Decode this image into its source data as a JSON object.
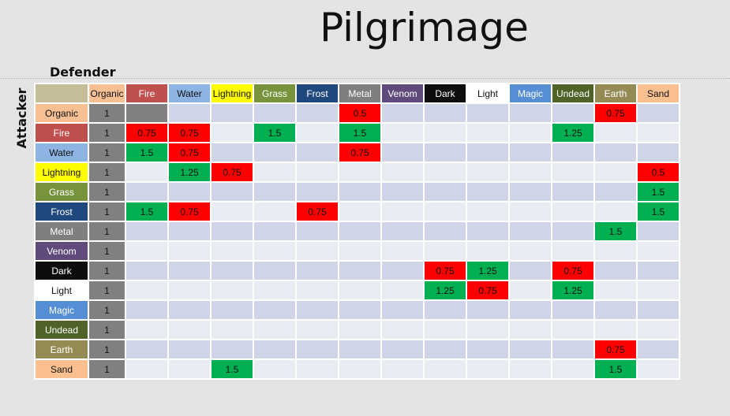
{
  "title": "Pilgrimage",
  "defender_label": "Defender",
  "attacker_label": "Attacker",
  "columns": [
    {
      "label": "Organic",
      "bg": "#f8bf93",
      "fg": "#111111"
    },
    {
      "label": "Fire",
      "bg": "#c0504d",
      "fg": "#ffffff"
    },
    {
      "label": "Water",
      "bg": "#8eb4e3",
      "fg": "#111111"
    },
    {
      "label": "Lightning",
      "bg": "#ffff00",
      "fg": "#111111"
    },
    {
      "label": "Grass",
      "bg": "#77933c",
      "fg": "#ffffff"
    },
    {
      "label": "Frost",
      "bg": "#1f497d",
      "fg": "#ffffff"
    },
    {
      "label": "Metal",
      "bg": "#7f7f7f",
      "fg": "#ffffff"
    },
    {
      "label": "Venom",
      "bg": "#604a7b",
      "fg": "#ffffff"
    },
    {
      "label": "Dark",
      "bg": "#0d0d0d",
      "fg": "#ffffff"
    },
    {
      "label": "Light",
      "bg": "#ffffff",
      "fg": "#111111"
    },
    {
      "label": "Magic",
      "bg": "#558ed5",
      "fg": "#ffffff"
    },
    {
      "label": "Undead",
      "bg": "#4f6228",
      "fg": "#ffffff"
    },
    {
      "label": "Earth",
      "bg": "#948a54",
      "fg": "#ffffff"
    },
    {
      "label": "Sand",
      "bg": "#fac090",
      "fg": "#111111"
    }
  ],
  "rows": [
    {
      "label": "Organic",
      "bg": "#f8bf93",
      "fg": "#111111",
      "cells": [
        "1",
        {
          "c": "gray"
        },
        "",
        "",
        "",
        "",
        "0.5",
        "",
        "",
        "",
        "",
        "",
        "0.75",
        ""
      ]
    },
    {
      "label": "Fire",
      "bg": "#c0504d",
      "fg": "#ffffff",
      "cells": [
        "1",
        "0.75",
        "0.75",
        "",
        "1.5",
        "",
        "1.5",
        "",
        "",
        "",
        "",
        "1.25",
        "",
        ""
      ]
    },
    {
      "label": "Water",
      "bg": "#8eb4e3",
      "fg": "#111111",
      "cells": [
        "1",
        "1.5",
        "0.75",
        "",
        "",
        "",
        "0.75",
        "",
        "",
        "",
        "",
        "",
        "",
        ""
      ]
    },
    {
      "label": "Lightning",
      "bg": "#ffff00",
      "fg": "#111111",
      "cells": [
        "1",
        "",
        "1.25",
        "0.75",
        "",
        "",
        "",
        "",
        "",
        "",
        "",
        "",
        "",
        "0.5"
      ]
    },
    {
      "label": "Grass",
      "bg": "#77933c",
      "fg": "#ffffff",
      "cells": [
        "1",
        "",
        "",
        "",
        "",
        "",
        "",
        "",
        "",
        "",
        "",
        "",
        "",
        "1.5"
      ]
    },
    {
      "label": "Frost",
      "bg": "#1f497d",
      "fg": "#ffffff",
      "cells": [
        "1",
        "1.5",
        "0.75",
        "",
        "",
        "0.75",
        "",
        "",
        "",
        "",
        "",
        "",
        "",
        "1.5"
      ]
    },
    {
      "label": "Metal",
      "bg": "#7f7f7f",
      "fg": "#ffffff",
      "cells": [
        "1",
        "",
        "",
        "",
        "",
        "",
        "",
        "",
        "",
        "",
        "",
        "",
        "1.5",
        ""
      ]
    },
    {
      "label": "Venom",
      "bg": "#604a7b",
      "fg": "#ffffff",
      "cells": [
        "1",
        "",
        "",
        "",
        "",
        "",
        "",
        "",
        "",
        "",
        "",
        "",
        "",
        ""
      ]
    },
    {
      "label": "Dark",
      "bg": "#0d0d0d",
      "fg": "#ffffff",
      "cells": [
        "1",
        "",
        "",
        "",
        "",
        "",
        "",
        "",
        "0.75",
        "1.25",
        "",
        "0.75",
        "",
        ""
      ]
    },
    {
      "label": "Light",
      "bg": "#ffffff",
      "fg": "#111111",
      "cells": [
        "1",
        "",
        "",
        "",
        "",
        "",
        "",
        "",
        "1.25",
        "0.75",
        "",
        "1.25",
        "",
        ""
      ]
    },
    {
      "label": "Magic",
      "bg": "#558ed5",
      "fg": "#ffffff",
      "cells": [
        "1",
        "",
        "",
        "",
        "",
        "",
        "",
        "",
        "",
        "",
        "",
        "",
        "",
        ""
      ]
    },
    {
      "label": "Undead",
      "bg": "#4f6228",
      "fg": "#ffffff",
      "cells": [
        "1",
        "",
        "",
        "",
        "",
        "",
        "",
        "",
        "",
        "",
        "",
        "",
        "",
        ""
      ]
    },
    {
      "label": "Earth",
      "bg": "#948a54",
      "fg": "#ffffff",
      "cells": [
        "1",
        "",
        "",
        "",
        "",
        "",
        "",
        "",
        "",
        "",
        "",
        "",
        "0.75",
        ""
      ]
    },
    {
      "label": "Sand",
      "bg": "#fac090",
      "fg": "#111111",
      "cells": [
        "1",
        "",
        "",
        "1.5",
        "",
        "",
        "",
        "",
        "",
        "",
        "",
        "",
        "1.5",
        ""
      ]
    }
  ],
  "colors": {
    "weak": "#ff0000",
    "strong": "#00b050",
    "neutral": "#808080"
  }
}
